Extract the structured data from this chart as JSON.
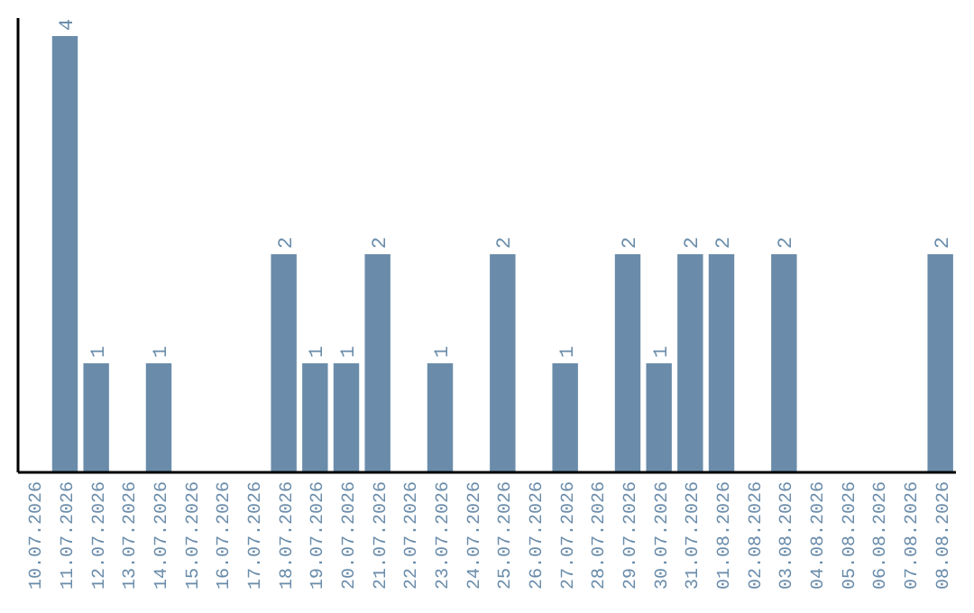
{
  "chart_data": {
    "type": "bar",
    "categories": [
      "10.07.2026",
      "11.07.2026",
      "12.07.2026",
      "13.07.2026",
      "14.07.2026",
      "15.07.2026",
      "16.07.2026",
      "17.07.2026",
      "18.07.2026",
      "19.07.2026",
      "20.07.2026",
      "21.07.2026",
      "22.07.2026",
      "23.07.2026",
      "24.07.2026",
      "25.07.2026",
      "26.07.2026",
      "27.07.2026",
      "28.07.2026",
      "29.07.2026",
      "30.07.2026",
      "31.07.2026",
      "01.08.2026",
      "02.08.2026",
      "03.08.2026",
      "04.08.2026",
      "05.08.2026",
      "06.08.2026",
      "07.08.2026",
      "08.08.2026"
    ],
    "values": [
      0,
      4,
      1,
      0,
      1,
      0,
      0,
      0,
      2,
      1,
      1,
      2,
      0,
      1,
      0,
      2,
      0,
      1,
      0,
      2,
      1,
      2,
      2,
      0,
      2,
      0,
      0,
      0,
      0,
      2
    ],
    "value_labels": [
      null,
      "4",
      "1",
      null,
      "1",
      null,
      null,
      null,
      "2",
      "1",
      "1",
      "2",
      null,
      "1",
      null,
      "2",
      null,
      "1",
      null,
      "2",
      "1",
      "2",
      "2",
      null,
      "2",
      null,
      null,
      null,
      null,
      "2"
    ],
    "color": "#6a8caa",
    "tick_labels": "x"
  }
}
